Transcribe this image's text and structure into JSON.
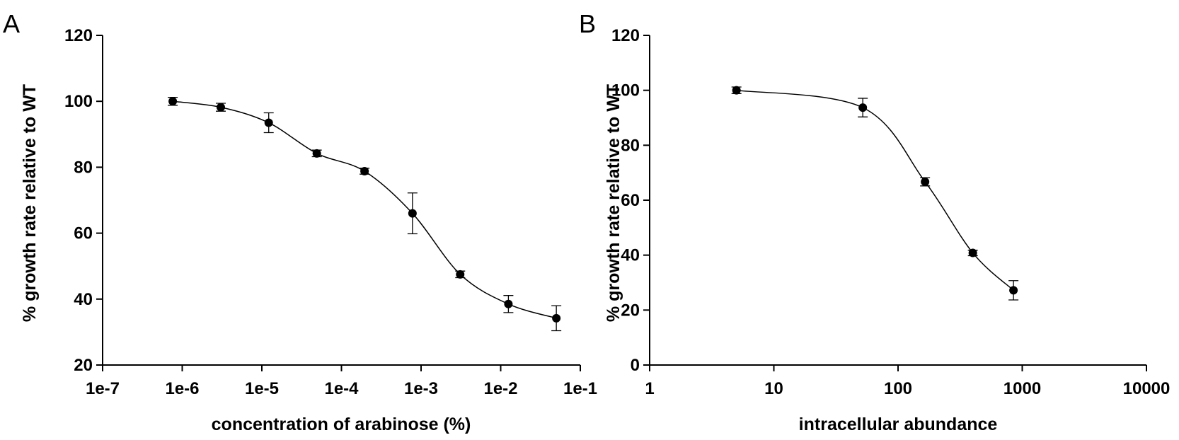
{
  "panels": [
    {
      "letter": "A"
    },
    {
      "letter": "B"
    }
  ],
  "chart_data": [
    {
      "type": "line",
      "title": "",
      "xlabel": "concentration of arabinose (%)",
      "ylabel": "% growth rate relative to WT",
      "xscale": "log",
      "xlim": [
        1e-07,
        0.1
      ],
      "ylim": [
        20,
        120
      ],
      "xticks": [
        1e-07,
        1e-06,
        1e-05,
        0.0001,
        0.001,
        0.01,
        0.1
      ],
      "xtick_labels": [
        "1e-7",
        "1e-6",
        "1e-5",
        "1e-4",
        "1e-3",
        "1e-2",
        "1e-1"
      ],
      "yticks": [
        20,
        40,
        60,
        80,
        100,
        120
      ],
      "ytick_labels": [
        "20",
        "40",
        "60",
        "80",
        "100",
        "120"
      ],
      "grid": false,
      "marker_color": "#000000",
      "series": [
        {
          "x": [
            7.6e-07,
            3.05e-06,
            1.22e-05,
            4.9e-05,
            0.000195,
            0.00078,
            0.0031,
            0.0125,
            0.05
          ],
          "y": [
            100,
            98.2,
            93.5,
            84.2,
            78.8,
            66,
            47.5,
            38.5,
            34.2
          ],
          "yerr": [
            1.2,
            1.2,
            3,
            1,
            0.9,
            6.2,
            1,
            2.6,
            3.8
          ]
        }
      ]
    },
    {
      "type": "line",
      "title": "",
      "xlabel": "intracellular abundance",
      "ylabel": "% growth rate relative to WT",
      "xscale": "log",
      "xlim": [
        1,
        10000
      ],
      "ylim": [
        0,
        120
      ],
      "xticks": [
        1,
        10,
        100,
        1000,
        10000
      ],
      "xtick_labels": [
        "1",
        "10",
        "100",
        "1000",
        "10000"
      ],
      "yticks": [
        0,
        20,
        40,
        60,
        80,
        100,
        120
      ],
      "ytick_labels": [
        "0",
        "20",
        "40",
        "60",
        "80",
        "100",
        "120"
      ],
      "grid": false,
      "marker_color": "#000000",
      "series": [
        {
          "x": [
            5,
            52,
            165,
            400,
            850
          ],
          "y": [
            100,
            93.7,
            66.7,
            40.8,
            27.2
          ],
          "yerr": [
            1.2,
            3.4,
            1.5,
            1,
            3.5
          ]
        }
      ]
    }
  ]
}
